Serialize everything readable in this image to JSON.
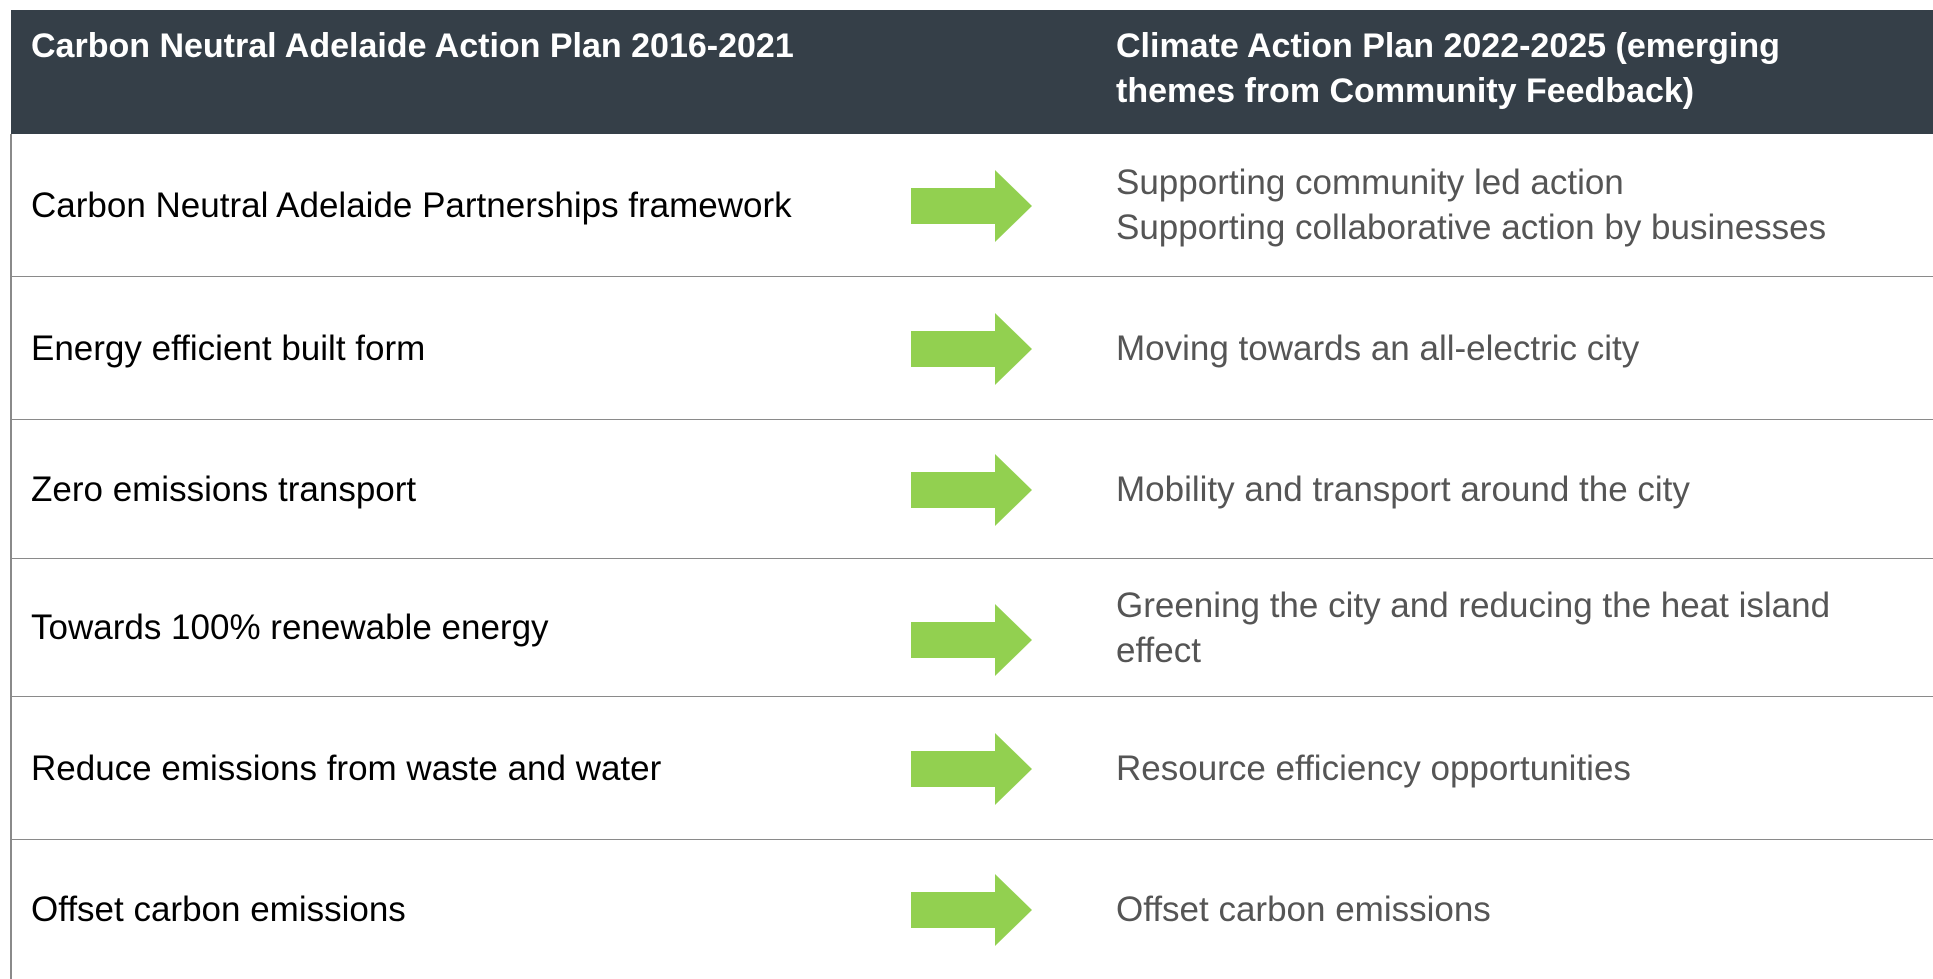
{
  "table": {
    "header": [
      "Carbon Neutral Adelaide Action Plan 2016-2021",
      "Climate Action Plan 2022-2025 (emerging themes from Community Feedback)"
    ],
    "rows": [
      {
        "left": "Carbon Neutral Adelaide Partnerships framework",
        "right": [
          "Supporting community led action",
          "Supporting collaborative action by businesses"
        ]
      },
      {
        "left": "Energy efficient built form",
        "right": [
          "Moving towards an all-electric city"
        ]
      },
      {
        "left": "Zero emissions transport",
        "right": [
          "Mobility and transport around the city"
        ]
      },
      {
        "left": "Towards 100% renewable energy",
        "right": [
          "Greening the city and reducing the heat island effect"
        ]
      },
      {
        "left": "Reduce emissions from waste and water",
        "right": [
          "Resource efficiency opportunities"
        ]
      },
      {
        "left": "Offset carbon emissions",
        "right": [
          "Offset carbon emissions"
        ]
      }
    ]
  }
}
